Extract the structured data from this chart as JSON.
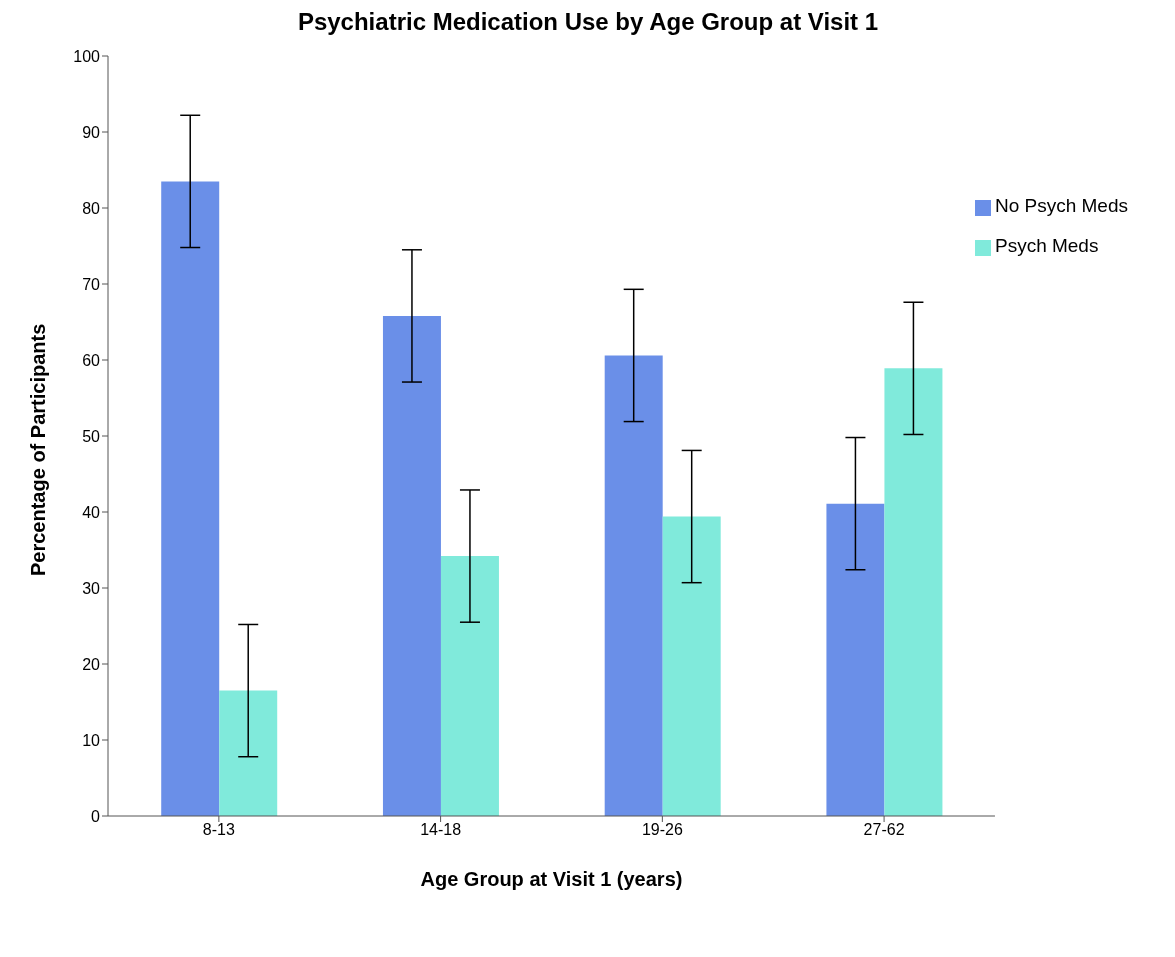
{
  "chart_data": {
    "type": "bar",
    "title": "Psychiatric Medication Use by Age Group at Visit 1",
    "xlabel": "Age Group at Visit 1 (years)",
    "ylabel": "Percentage of Participants",
    "categories": [
      "8-13",
      "14-18",
      "19-26",
      "27-62"
    ],
    "series": [
      {
        "name": "No Psych Meds",
        "color": "#6a8fe8",
        "values": [
          83.5,
          65.8,
          60.6,
          41.1
        ],
        "errors": [
          8.7,
          8.7,
          8.7,
          8.7
        ]
      },
      {
        "name": "Psych Meds",
        "color": "#80eadb",
        "values": [
          16.5,
          34.2,
          39.4,
          58.9
        ],
        "errors": [
          8.7,
          8.7,
          8.7,
          8.7
        ]
      }
    ],
    "ylim": [
      0,
      100
    ],
    "yticks": [
      0,
      10,
      20,
      30,
      40,
      50,
      60,
      70,
      80,
      90,
      100
    ],
    "grid": false,
    "legend": "top right"
  }
}
